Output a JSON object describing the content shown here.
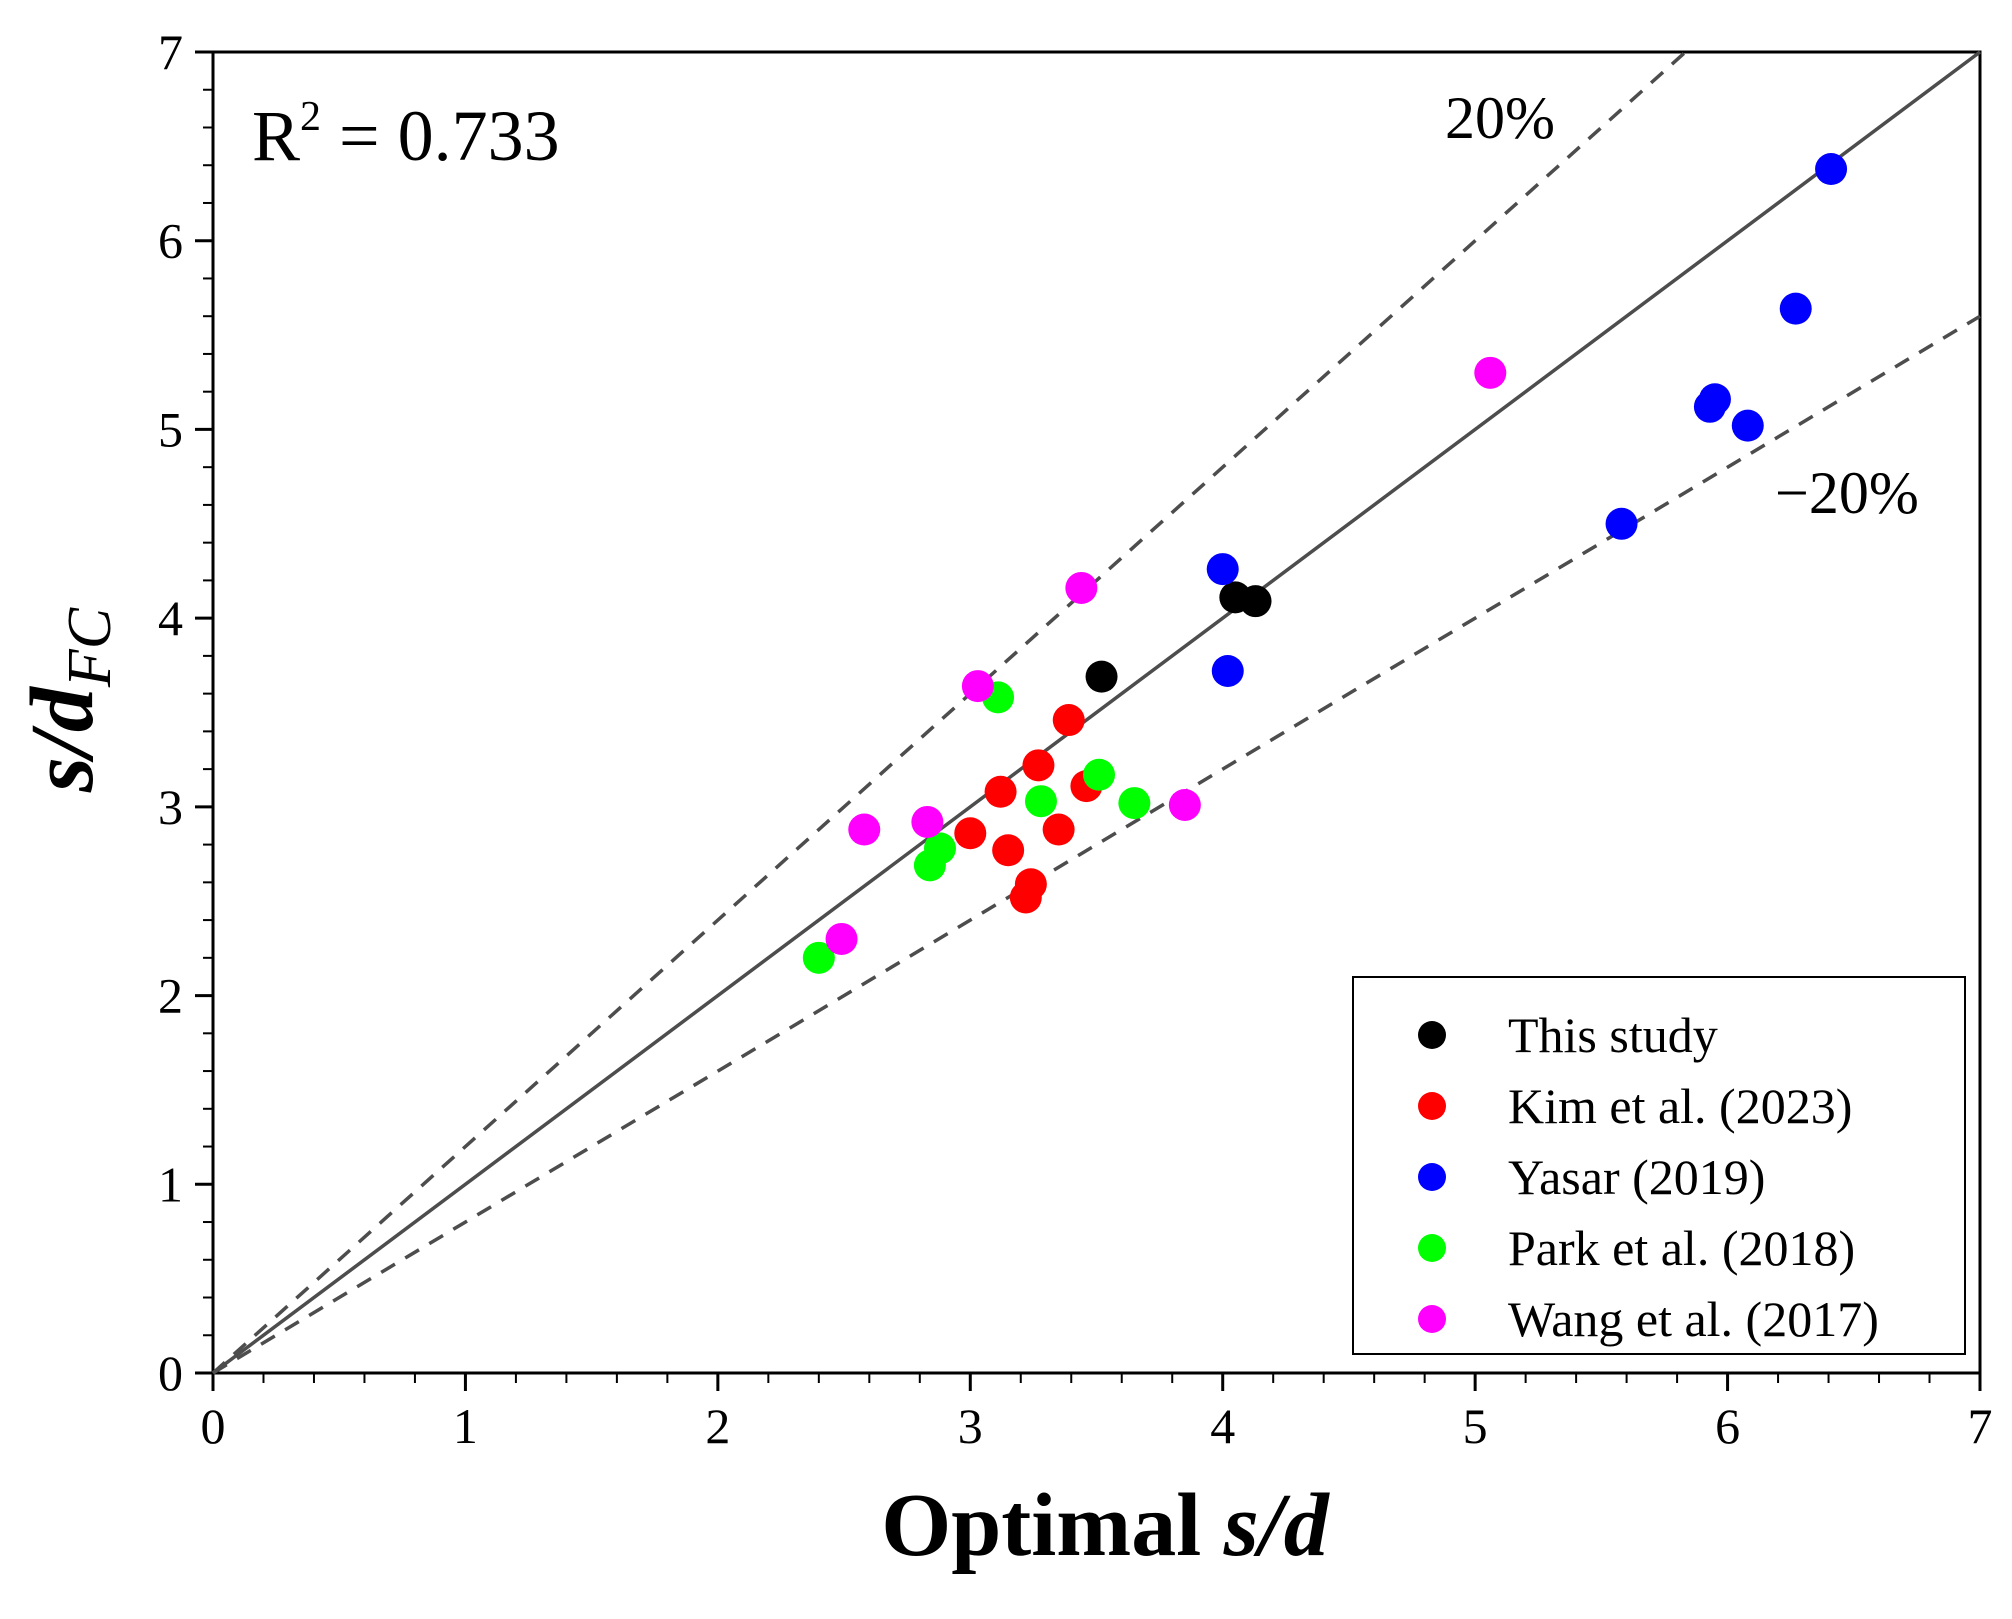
{
  "chart_data": {
    "type": "scatter",
    "title": "",
    "xlabel": {
      "prefix": "Optimal ",
      "italic": "s/d"
    },
    "ylabel": {
      "italic": "s/d",
      "subscript": "FC"
    },
    "xlim": [
      0,
      7
    ],
    "ylim": [
      0,
      7
    ],
    "xticks": [
      0,
      1,
      2,
      3,
      4,
      5,
      6,
      7
    ],
    "yticks": [
      0,
      1,
      2,
      3,
      4,
      5,
      6,
      7
    ],
    "x_minor_step": 0.2,
    "y_minor_step": 0.2,
    "grid": false,
    "legend_position": "bottom-right",
    "annotations": {
      "r2": {
        "base": "R",
        "sup": "2",
        "rest": " = 0.733"
      },
      "plus20": "20%",
      "minus20": "−20%"
    },
    "reference_lines": [
      {
        "name": "1:1",
        "slope": 1.0,
        "style": "solid"
      },
      {
        "name": "+20%",
        "slope": 1.2,
        "style": "dashed"
      },
      {
        "name": "-20%",
        "slope": 0.8,
        "style": "dashed"
      }
    ],
    "series": [
      {
        "name": "This study",
        "color": "#000000",
        "points": [
          [
            3.52,
            3.69
          ],
          [
            4.05,
            4.11
          ],
          [
            4.13,
            4.09
          ]
        ]
      },
      {
        "name": "Kim et al. (2023)",
        "color": "#ff0000",
        "points": [
          [
            3.0,
            2.86
          ],
          [
            3.12,
            3.08
          ],
          [
            3.15,
            2.77
          ],
          [
            3.22,
            2.52
          ],
          [
            3.24,
            2.59
          ],
          [
            3.27,
            3.22
          ],
          [
            3.35,
            2.88
          ],
          [
            3.39,
            3.46
          ],
          [
            3.46,
            3.11
          ]
        ]
      },
      {
        "name": "Yasar (2019)",
        "color": "#0000ff",
        "points": [
          [
            4.0,
            4.26
          ],
          [
            4.02,
            3.72
          ],
          [
            5.58,
            4.5
          ],
          [
            5.93,
            5.12
          ],
          [
            5.95,
            5.16
          ],
          [
            6.08,
            5.02
          ],
          [
            6.27,
            5.64
          ],
          [
            6.41,
            6.38
          ]
        ]
      },
      {
        "name": "Park et al. (2018)",
        "color": "#00ff00",
        "points": [
          [
            2.4,
            2.2
          ],
          [
            2.84,
            2.69
          ],
          [
            2.88,
            2.78
          ],
          [
            3.11,
            3.58
          ],
          [
            3.28,
            3.03
          ],
          [
            3.51,
            3.17
          ],
          [
            3.65,
            3.02
          ]
        ]
      },
      {
        "name": "Wang et al. (2017)",
        "color": "#ff00ff",
        "points": [
          [
            2.49,
            2.3
          ],
          [
            2.58,
            2.88
          ],
          [
            2.83,
            2.92
          ],
          [
            3.03,
            3.64
          ],
          [
            3.44,
            4.16
          ],
          [
            3.85,
            3.01
          ],
          [
            5.06,
            5.3
          ]
        ]
      }
    ]
  }
}
